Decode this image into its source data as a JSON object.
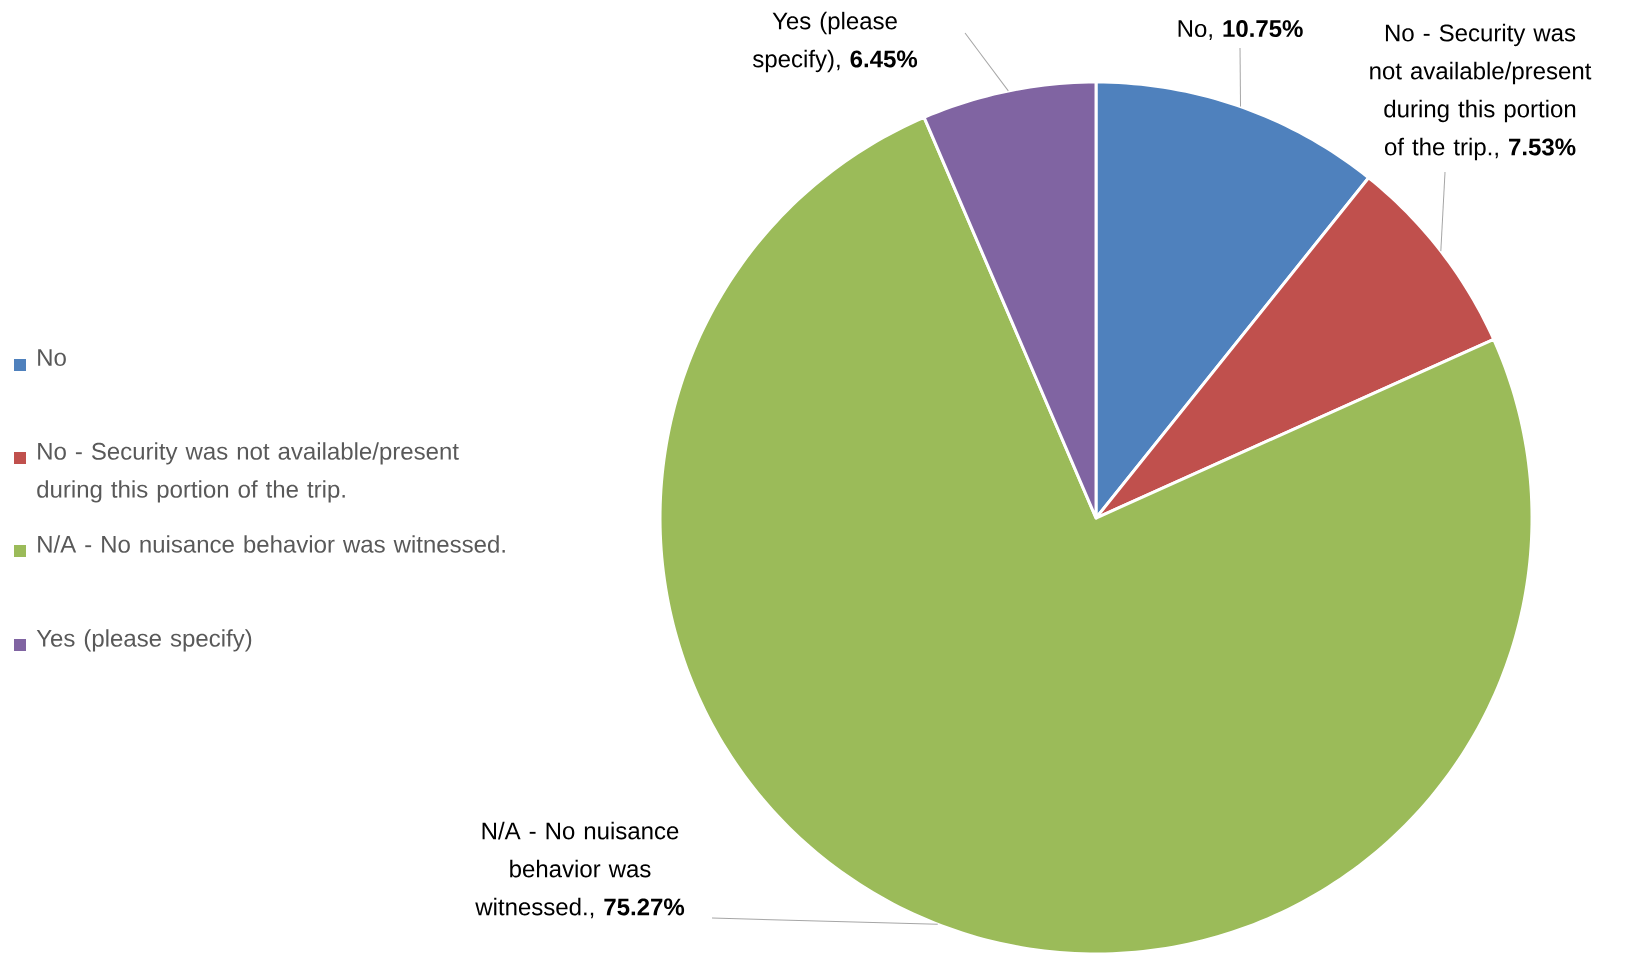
{
  "chart_data": {
    "type": "pie",
    "categories": [
      "No",
      "No - Security was not available/present during this portion of the trip.",
      "N/A - No nuisance behavior was witnessed.",
      "Yes (please specify)"
    ],
    "values": [
      10.75,
      7.53,
      75.27,
      6.45
    ],
    "colors": [
      "#4f81bd",
      "#c0504d",
      "#9bbb59",
      "#8064a2"
    ],
    "value_labels": [
      "No, **10.75%**",
      "No - Security was not available/present during this portion of the trip., **7.53%**",
      "N/A - No nuisance behavior was witnessed., **75.27%**",
      "Yes (please specify), **6.45%**"
    ],
    "legend": "left"
  }
}
